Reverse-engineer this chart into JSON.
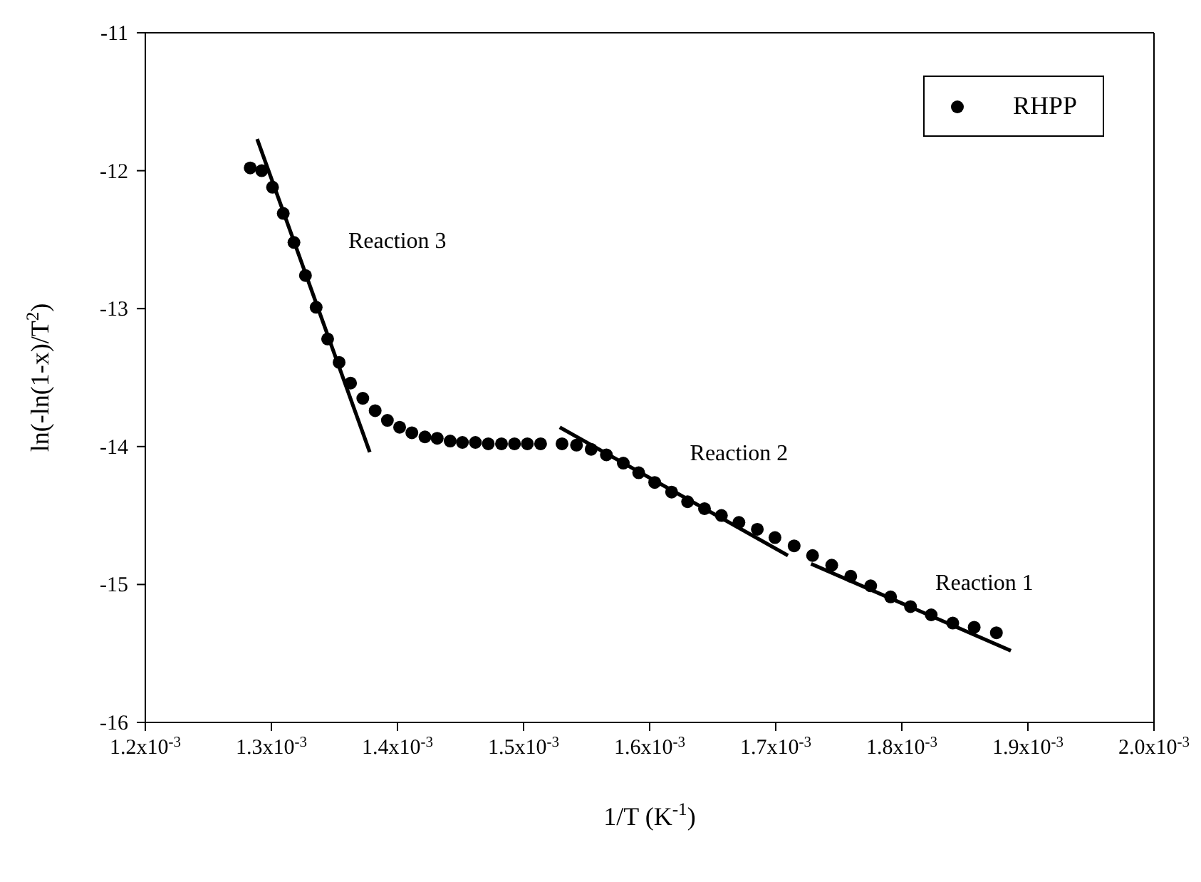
{
  "chart_data": {
    "type": "scatter",
    "xlabel": "1/T (K$^{-1}$)",
    "ylabel": "ln(-ln(1-x)/T$^{2}$)",
    "xlim": [
      0.0012,
      0.002
    ],
    "xticks": [
      {
        "value": 0.0012,
        "label": "1.2x10$^{-3}$"
      },
      {
        "value": 0.0013,
        "label": "1.3x10$^{-3}$"
      },
      {
        "value": 0.0014,
        "label": "1.4x10$^{-3}$"
      },
      {
        "value": 0.0015,
        "label": "1.5x10$^{-3}$"
      },
      {
        "value": 0.0016,
        "label": "1.6x10$^{-3}$"
      },
      {
        "value": 0.0017,
        "label": "1.7x10$^{-3}$"
      },
      {
        "value": 0.0018,
        "label": "1.8x10$^{-3}$"
      },
      {
        "value": 0.0019,
        "label": "1.9x10$^{-3}$"
      },
      {
        "value": 0.002,
        "label": "2.0x10$^{-3}$"
      }
    ],
    "ylim": [
      -16,
      -11
    ],
    "yticks": [
      -16,
      -15,
      -14,
      -13,
      -12,
      -11
    ],
    "grid": false,
    "legend": "top right",
    "marker": "circle",
    "annotations": [
      "Reaction 3",
      "Reaction 2",
      "Reaction 1"
    ],
    "series": [
      {
        "name": "RHPP",
        "color": "#000000",
        "x": [
          0.0012832,
          0.0012923,
          0.0013009,
          0.0013094,
          0.0013179,
          0.001327,
          0.0013355,
          0.0013446,
          0.0013537,
          0.0013628,
          0.0013725,
          0.0013823,
          0.001392,
          0.0014017,
          0.0014114,
          0.0014218,
          0.0014315,
          0.0014418,
          0.0014515,
          0.0014618,
          0.001472,
          0.0014825,
          0.0014928,
          0.001503,
          0.0015135,
          0.0015305,
          0.001542,
          0.0015536,
          0.0015657,
          0.0015791,
          0.0015913,
          0.001604,
          0.0016174,
          0.0016301,
          0.0016435,
          0.0016569,
          0.0016708,
          0.0016854,
          0.0016994,
          0.0017146,
          0.0017292,
          0.0017444,
          0.0017595,
          0.0017753,
          0.0017911,
          0.0018069,
          0.0018233,
          0.0018404,
          0.0018574,
          0.001875
        ],
        "values": [
          -11.98,
          -12.0,
          -12.12,
          -12.31,
          -12.52,
          -12.76,
          -12.99,
          -13.22,
          -13.39,
          -13.54,
          -13.65,
          -13.74,
          -13.81,
          -13.86,
          -13.9,
          -13.93,
          -13.94,
          -13.96,
          -13.97,
          -13.97,
          -13.98,
          -13.98,
          -13.98,
          -13.98,
          -13.98,
          -13.98,
          -13.99,
          -14.02,
          -14.06,
          -14.12,
          -14.19,
          -14.26,
          -14.33,
          -14.4,
          -14.45,
          -14.5,
          -14.55,
          -14.6,
          -14.66,
          -14.72,
          -14.79,
          -14.86,
          -14.94,
          -15.01,
          -15.09,
          -15.16,
          -15.22,
          -15.28,
          -15.31,
          -15.35
        ]
      },
      {
        "type": "line",
        "marker": "none",
        "color": "#000000",
        "x": [
          0.0012887,
          0.001378
        ],
        "values": [
          -11.77,
          -14.04
        ]
      },
      {
        "type": "line",
        "marker": "none",
        "color": "#000000",
        "x": [
          0.0015287,
          0.0017097
        ],
        "values": [
          -13.86,
          -14.79
        ]
      },
      {
        "type": "line",
        "marker": "none",
        "color": "#000000",
        "x": [
          0.001728,
          0.0018865
        ],
        "values": [
          -14.85,
          -15.48
        ]
      }
    ]
  }
}
